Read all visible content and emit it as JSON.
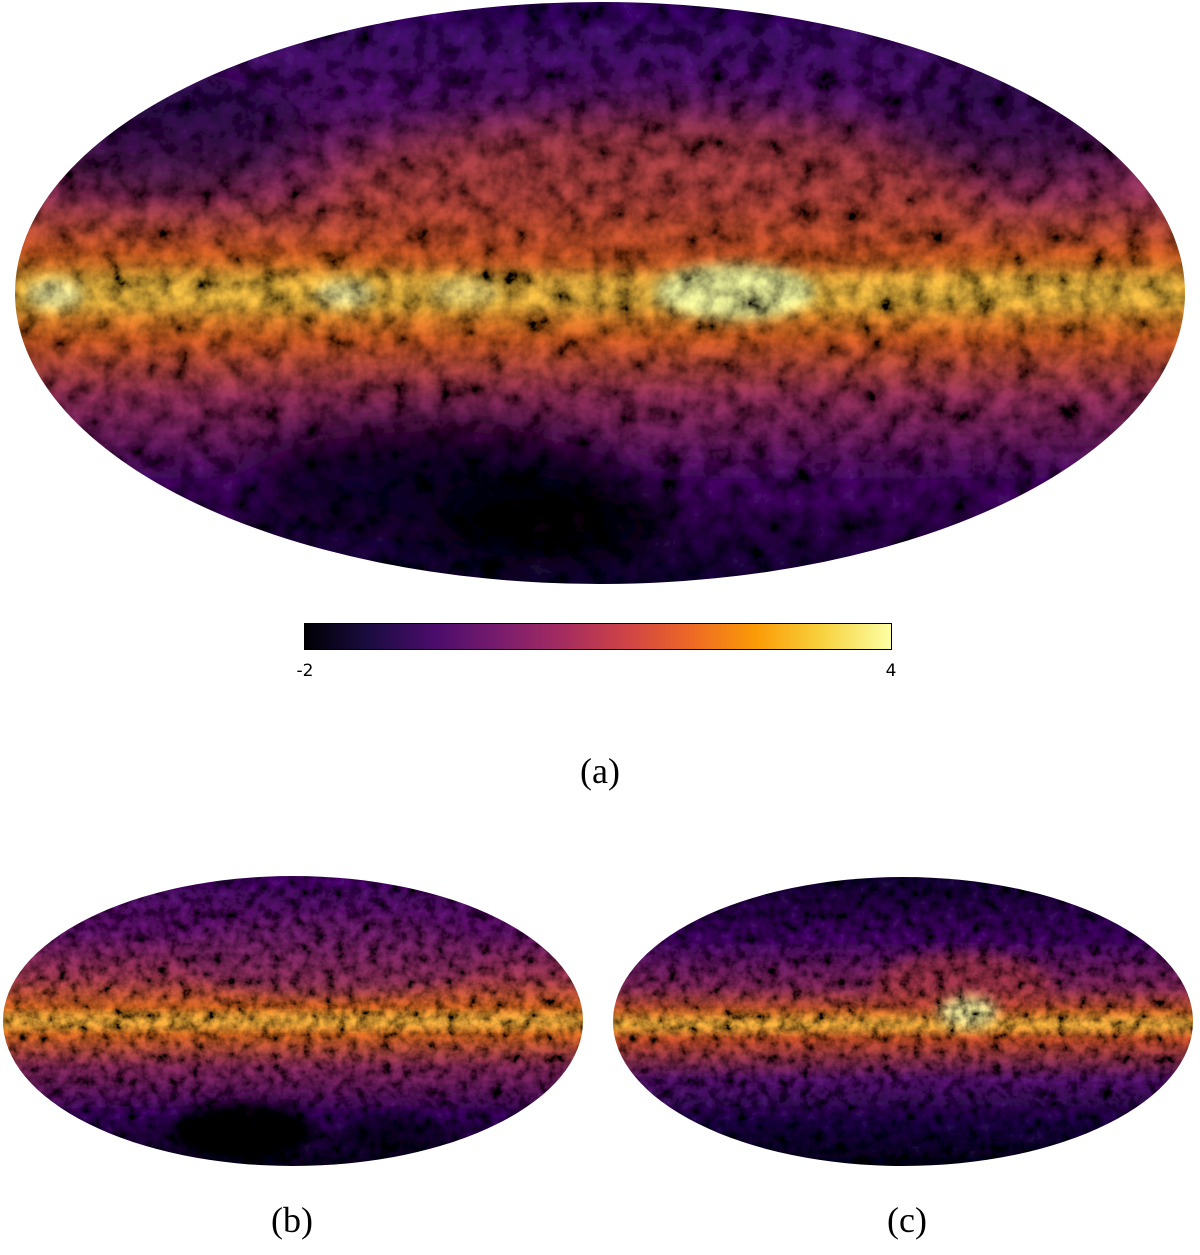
{
  "figure": {
    "panels": [
      {
        "label": "(a)",
        "description": "full-sky map"
      },
      {
        "label": "(b)"
      },
      {
        "label": "(c)"
      }
    ],
    "colorbar": {
      "min_label": "-2",
      "max_label": "4",
      "colormap": "inferno",
      "colors": [
        "#000004",
        "#4a0c6b",
        "#a52c60",
        "#ed6925",
        "#fcffa4"
      ]
    }
  }
}
